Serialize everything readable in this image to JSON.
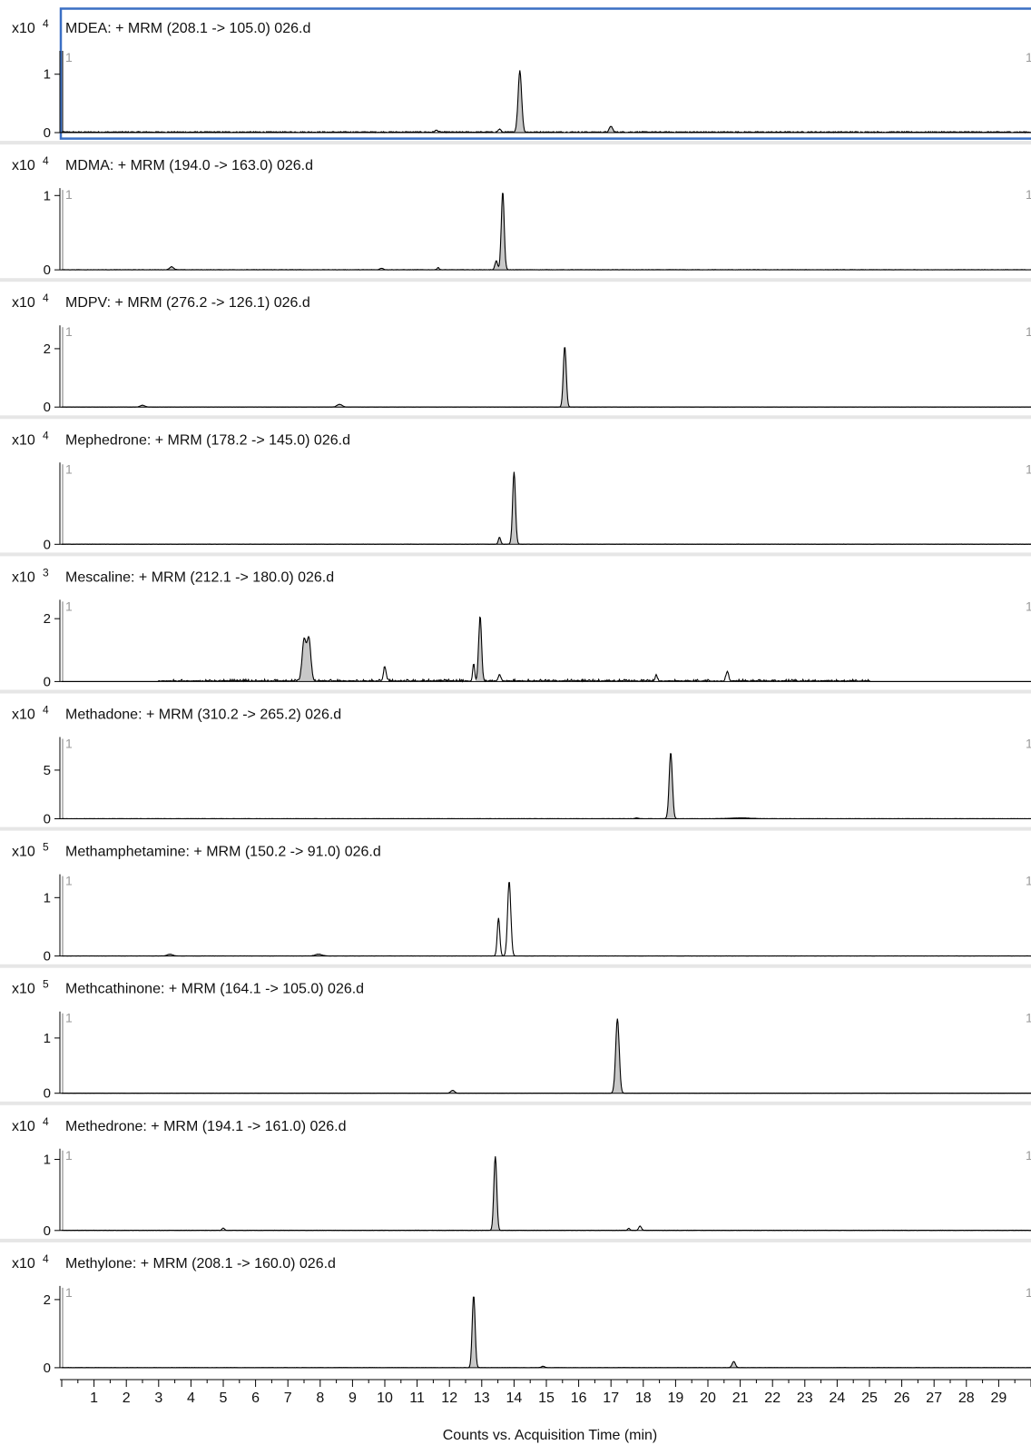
{
  "colors": {
    "trace": "#000000",
    "peak_fill": "#c8c8c8",
    "selected_border": "#3a6fc4",
    "panel_separator": "#e6e6e6",
    "axis": "#000000"
  },
  "chart_data": [
    {
      "type": "line",
      "title": "MDEA: + MRM (208.1 -> 105.0) 026.d",
      "scale_prefix": "x10",
      "scale_exp": "4",
      "y_ticks": [
        {
          "value": 0,
          "label": "0"
        },
        {
          "value": 1,
          "label": "1"
        }
      ],
      "ylim": [
        0,
        1.4
      ],
      "marker_left": "1",
      "marker_right": "1",
      "selected": true,
      "noise": 0.018,
      "peaks": [
        {
          "rt": 14.18,
          "height": 1.05,
          "width": 0.055,
          "filled": true
        },
        {
          "rt": 17.0,
          "height": 0.1,
          "width": 0.05,
          "filled": true
        },
        {
          "rt": 13.55,
          "height": 0.05,
          "width": 0.04,
          "filled": false
        },
        {
          "rt": 11.6,
          "height": 0.03,
          "width": 0.05,
          "filled": false
        }
      ]
    },
    {
      "type": "line",
      "title": "MDMA: + MRM (194.0 -> 163.0) 026.d",
      "scale_prefix": "x10",
      "scale_exp": "4",
      "y_ticks": [
        {
          "value": 0,
          "label": "0"
        },
        {
          "value": 1,
          "label": "1"
        }
      ],
      "ylim": [
        0,
        1.1
      ],
      "marker_left": "1",
      "marker_right": "1",
      "selected": false,
      "noise": 0.004,
      "peaks": [
        {
          "rt": 13.65,
          "height": 1.05,
          "width": 0.045,
          "filled": true
        },
        {
          "rt": 13.45,
          "height": 0.12,
          "width": 0.04,
          "filled": true
        },
        {
          "rt": 3.4,
          "height": 0.04,
          "width": 0.06,
          "filled": true
        },
        {
          "rt": 9.9,
          "height": 0.02,
          "width": 0.05,
          "filled": false
        },
        {
          "rt": 11.65,
          "height": 0.03,
          "width": 0.03,
          "filled": false
        }
      ]
    },
    {
      "type": "line",
      "title": "MDPV: + MRM (276.2 -> 126.1) 026.d",
      "scale_prefix": "x10",
      "scale_exp": "4",
      "y_ticks": [
        {
          "value": 0,
          "label": "0"
        },
        {
          "value": 2,
          "label": "2"
        }
      ],
      "ylim": [
        0,
        2.8
      ],
      "marker_left": "1",
      "marker_right": "1",
      "selected": false,
      "noise": 0.004,
      "peaks": [
        {
          "rt": 15.57,
          "height": 2.08,
          "width": 0.045,
          "filled": true
        },
        {
          "rt": 2.5,
          "height": 0.06,
          "width": 0.07,
          "filled": true
        },
        {
          "rt": 8.6,
          "height": 0.09,
          "width": 0.08,
          "filled": true
        }
      ]
    },
    {
      "type": "line",
      "title": "Mephedrone: + MRM (178.2 -> 145.0) 026.d",
      "scale_prefix": "x10",
      "scale_exp": "4",
      "y_ticks": [
        {
          "value": 0,
          "label": "0"
        }
      ],
      "ylim": [
        0,
        1.05
      ],
      "marker_left": "1",
      "marker_right": "1",
      "selected": false,
      "noise": 0.003,
      "peaks": [
        {
          "rt": 14.0,
          "height": 0.93,
          "width": 0.045,
          "filled": true
        },
        {
          "rt": 13.55,
          "height": 0.09,
          "width": 0.035,
          "filled": true
        }
      ]
    },
    {
      "type": "line",
      "title": "Mescaline: + MRM (212.1 -> 180.0) 026.d",
      "scale_prefix": "x10",
      "scale_exp": "3",
      "y_ticks": [
        {
          "value": 0,
          "label": "0"
        },
        {
          "value": 2,
          "label": "2"
        }
      ],
      "ylim": [
        0,
        2.6
      ],
      "marker_left": "1",
      "marker_right": "1",
      "selected": false,
      "noise": 0.09,
      "peaks": [
        {
          "rt": 12.95,
          "height": 2.05,
          "width": 0.045,
          "filled": true
        },
        {
          "rt": 7.5,
          "height": 1.3,
          "width": 0.06,
          "filled": true
        },
        {
          "rt": 7.65,
          "height": 1.35,
          "width": 0.06,
          "filled": true
        },
        {
          "rt": 12.75,
          "height": 0.55,
          "width": 0.03,
          "filled": false
        },
        {
          "rt": 10.0,
          "height": 0.45,
          "width": 0.04,
          "filled": false
        },
        {
          "rt": 20.6,
          "height": 0.3,
          "width": 0.04,
          "filled": false
        },
        {
          "rt": 13.55,
          "height": 0.2,
          "width": 0.04,
          "filled": false
        },
        {
          "rt": 18.4,
          "height": 0.2,
          "width": 0.03,
          "filled": false
        }
      ]
    },
    {
      "type": "line",
      "title": "Methadone: + MRM (310.2 -> 265.2) 026.d",
      "scale_prefix": "x10",
      "scale_exp": "4",
      "y_ticks": [
        {
          "value": 0,
          "label": "0"
        },
        {
          "value": 5,
          "label": "5"
        }
      ],
      "ylim": [
        0,
        8.4
      ],
      "marker_left": "1",
      "marker_right": "1",
      "selected": false,
      "noise": 0.02,
      "peaks": [
        {
          "rt": 18.85,
          "height": 6.8,
          "width": 0.05,
          "filled": true
        },
        {
          "rt": 21.0,
          "height": 0.08,
          "width": 0.3,
          "filled": false
        },
        {
          "rt": 17.8,
          "height": 0.08,
          "width": 0.05,
          "filled": false
        }
      ]
    },
    {
      "type": "line",
      "title": "Methamphetamine: + MRM (150.2 -> 91.0) 026.d",
      "scale_prefix": "x10",
      "scale_exp": "5",
      "y_ticks": [
        {
          "value": 0,
          "label": "0"
        },
        {
          "value": 1,
          "label": "1"
        }
      ],
      "ylim": [
        0,
        1.4
      ],
      "marker_left": "1",
      "marker_right": "1",
      "selected": false,
      "noise": 0.003,
      "peaks": [
        {
          "rt": 13.85,
          "height": 1.28,
          "width": 0.05,
          "filled": false
        },
        {
          "rt": 13.52,
          "height": 0.65,
          "width": 0.04,
          "filled": false
        },
        {
          "rt": 3.35,
          "height": 0.03,
          "width": 0.08,
          "filled": true
        },
        {
          "rt": 7.95,
          "height": 0.03,
          "width": 0.1,
          "filled": true
        }
      ]
    },
    {
      "type": "line",
      "title": "Methcathinone: + MRM (164.1 -> 105.0) 026.d",
      "scale_prefix": "x10",
      "scale_exp": "5",
      "y_ticks": [
        {
          "value": 0,
          "label": "0"
        },
        {
          "value": 1,
          "label": "1"
        }
      ],
      "ylim": [
        0,
        1.48
      ],
      "marker_left": "1",
      "marker_right": "1",
      "selected": false,
      "noise": 0.002,
      "peaks": [
        {
          "rt": 17.2,
          "height": 1.35,
          "width": 0.055,
          "filled": true
        },
        {
          "rt": 12.1,
          "height": 0.05,
          "width": 0.06,
          "filled": true
        }
      ]
    },
    {
      "type": "line",
      "title": "Methedrone: + MRM (194.1 -> 161.0) 026.d",
      "scale_prefix": "x10",
      "scale_exp": "4",
      "y_ticks": [
        {
          "value": 0,
          "label": "0"
        },
        {
          "value": 1,
          "label": "1"
        }
      ],
      "ylim": [
        0,
        1.15
      ],
      "marker_left": "1",
      "marker_right": "1",
      "selected": false,
      "noise": 0.004,
      "peaks": [
        {
          "rt": 13.42,
          "height": 1.04,
          "width": 0.045,
          "filled": true
        },
        {
          "rt": 5.0,
          "height": 0.03,
          "width": 0.04,
          "filled": false
        },
        {
          "rt": 17.9,
          "height": 0.06,
          "width": 0.04,
          "filled": false
        },
        {
          "rt": 17.55,
          "height": 0.03,
          "width": 0.03,
          "filled": false
        }
      ]
    },
    {
      "type": "line",
      "title": "Methylone: + MRM (208.1 -> 160.0) 026.d",
      "scale_prefix": "x10",
      "scale_exp": "4",
      "y_ticks": [
        {
          "value": 0,
          "label": "0"
        },
        {
          "value": 2,
          "label": "2"
        }
      ],
      "ylim": [
        0,
        2.4
      ],
      "marker_left": "1",
      "marker_right": "1",
      "selected": false,
      "noise": 0.005,
      "peaks": [
        {
          "rt": 12.75,
          "height": 2.12,
          "width": 0.045,
          "filled": true
        },
        {
          "rt": 20.8,
          "height": 0.18,
          "width": 0.05,
          "filled": true
        },
        {
          "rt": 14.9,
          "height": 0.04,
          "width": 0.05,
          "filled": false
        }
      ]
    }
  ],
  "x_axis": {
    "label": "Counts vs. Acquisition Time (min)",
    "xlim": [
      0,
      30
    ],
    "tick_labels": [
      "1",
      "2",
      "3",
      "4",
      "5",
      "6",
      "7",
      "8",
      "9",
      "10",
      "11",
      "12",
      "13",
      "14",
      "15",
      "16",
      "17",
      "18",
      "19",
      "20",
      "21",
      "22",
      "23",
      "24",
      "25",
      "26",
      "27",
      "28",
      "29"
    ]
  }
}
